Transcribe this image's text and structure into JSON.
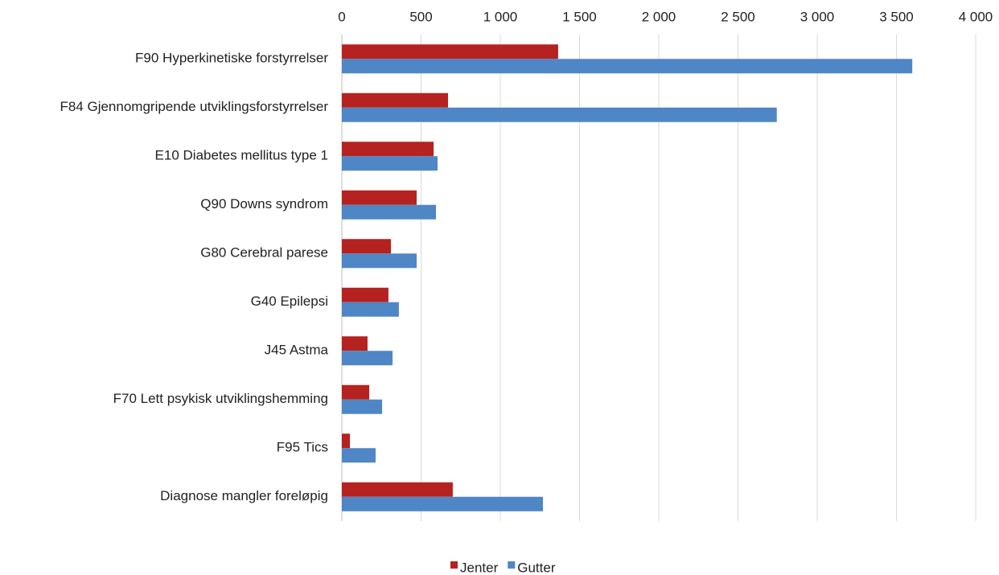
{
  "chart_data": {
    "type": "hbar",
    "categories": [
      "F90 Hyperkinetiske forstyrrelser",
      "F84 Gjennomgripende utviklingsforstyrrelser",
      "E10 Diabetes mellitus type 1",
      "Q90 Downs syndrom",
      "G80 Cerebral parese",
      "G40 Epilepsi",
      "J45 Astma",
      "F70 Lett psykisk utviklingshemming",
      "F95 Tics",
      "Diagnose mangler foreløpig"
    ],
    "series": [
      {
        "name": "Jenter",
        "color": "#b5221f",
        "values": [
          1365,
          670,
          579,
          472,
          310,
          294,
          162,
          173,
          51,
          700
        ]
      },
      {
        "name": "Gutter",
        "color": "#4f86c6",
        "values": [
          3600,
          2745,
          604,
          594,
          472,
          360,
          320,
          254,
          213,
          1269
        ]
      }
    ],
    "xlim": [
      0,
      4000
    ],
    "xticks": [
      0,
      500,
      {
        "value": 1000,
        "label": "1 000"
      },
      {
        "value": 1500,
        "label": "1 500"
      },
      {
        "value": 2000,
        "label": "2 000"
      },
      {
        "value": 2500,
        "label": "2 500"
      },
      {
        "value": 3000,
        "label": "3 000"
      },
      {
        "value": 3500,
        "label": "3 500"
      },
      {
        "value": 4000,
        "label": "4 000"
      }
    ],
    "grid": true
  }
}
